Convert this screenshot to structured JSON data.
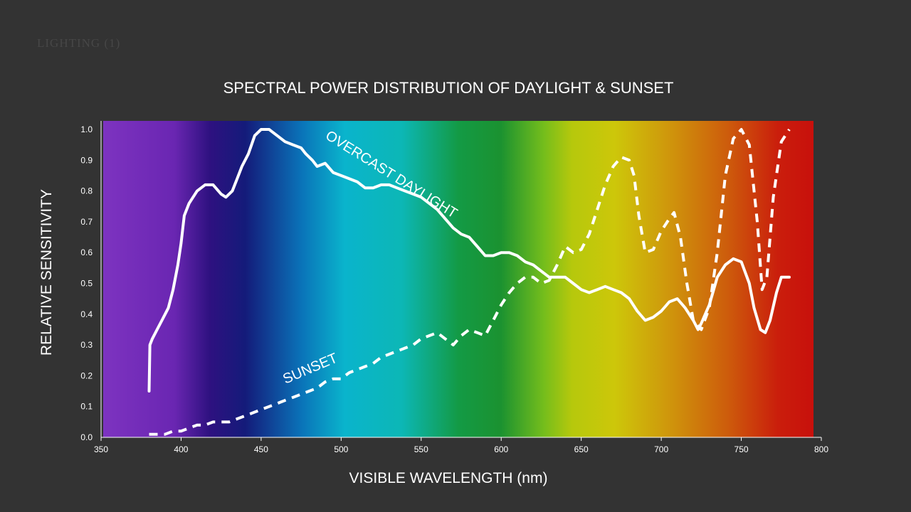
{
  "watermark": "LIGHTING (1)",
  "chart_data": {
    "type": "line",
    "title": "SPECTRAL POWER DISTRIBUTION OF DAYLIGHT & SUNSET",
    "xlabel": "VISIBLE WAVELENGTH (nm)",
    "ylabel": "RELATIVE SENSITIVITY",
    "xlim": [
      350,
      800
    ],
    "ylim": [
      0,
      1.0
    ],
    "x_ticks": [
      350,
      400,
      450,
      500,
      550,
      600,
      650,
      700,
      750,
      800
    ],
    "y_ticks": [
      "0.0",
      "0.1",
      "0.2",
      "0.3",
      "0.4",
      "0.5",
      "0.6",
      "0.7",
      "0.8",
      "0.9",
      "1.0"
    ],
    "background": "visible spectrum gradient",
    "grid": false,
    "legend": "none",
    "series": [
      {
        "name": "OVERCAST DAYLIGHT",
        "style": "solid",
        "color": "#ffffff",
        "x": [
          380,
          380.5,
          382,
          385,
          388,
          390,
          392,
          395,
          398,
          400,
          402,
          405,
          410,
          415,
          420,
          425,
          428,
          432,
          435,
          438,
          442,
          446,
          450,
          455,
          460,
          465,
          470,
          475,
          478,
          482,
          485,
          490,
          495,
          500,
          505,
          510,
          515,
          520,
          525,
          530,
          535,
          540,
          545,
          550,
          555,
          560,
          565,
          570,
          575,
          580,
          585,
          590,
          595,
          600,
          605,
          610,
          615,
          620,
          625,
          630,
          635,
          640,
          645,
          650,
          655,
          660,
          665,
          670,
          675,
          680,
          685,
          690,
          695,
          700,
          705,
          710,
          715,
          720,
          723,
          725,
          730,
          735,
          740,
          745,
          750,
          755,
          758,
          762,
          765,
          768,
          772,
          775,
          780
        ],
        "values": [
          0.15,
          0.3,
          0.32,
          0.35,
          0.38,
          0.4,
          0.42,
          0.48,
          0.56,
          0.63,
          0.72,
          0.76,
          0.8,
          0.82,
          0.82,
          0.79,
          0.78,
          0.8,
          0.84,
          0.88,
          0.92,
          0.98,
          1.0,
          1.0,
          0.98,
          0.96,
          0.95,
          0.94,
          0.92,
          0.9,
          0.88,
          0.89,
          0.86,
          0.85,
          0.84,
          0.83,
          0.81,
          0.81,
          0.82,
          0.82,
          0.81,
          0.8,
          0.79,
          0.78,
          0.76,
          0.74,
          0.71,
          0.68,
          0.66,
          0.65,
          0.62,
          0.59,
          0.59,
          0.6,
          0.6,
          0.59,
          0.57,
          0.56,
          0.54,
          0.52,
          0.52,
          0.52,
          0.5,
          0.48,
          0.47,
          0.48,
          0.49,
          0.48,
          0.47,
          0.45,
          0.41,
          0.38,
          0.39,
          0.41,
          0.44,
          0.45,
          0.42,
          0.38,
          0.35,
          0.37,
          0.43,
          0.52,
          0.56,
          0.58,
          0.57,
          0.5,
          0.42,
          0.35,
          0.34,
          0.38,
          0.47,
          0.52,
          0.52
        ]
      },
      {
        "name": "SUNSET",
        "style": "dashed",
        "color": "#ffffff",
        "x": [
          380,
          385,
          390,
          395,
          400,
          405,
          410,
          415,
          420,
          425,
          430,
          435,
          440,
          445,
          450,
          455,
          460,
          465,
          470,
          475,
          480,
          485,
          490,
          495,
          500,
          505,
          510,
          515,
          520,
          525,
          530,
          535,
          540,
          545,
          550,
          555,
          560,
          565,
          570,
          575,
          580,
          585,
          590,
          595,
          600,
          605,
          610,
          615,
          620,
          625,
          630,
          635,
          640,
          645,
          650,
          655,
          660,
          665,
          670,
          675,
          680,
          683,
          686,
          690,
          695,
          700,
          705,
          708,
          712,
          716,
          720,
          725,
          730,
          735,
          740,
          745,
          750,
          755,
          760,
          763,
          766,
          770,
          775,
          780
        ],
        "values": [
          0.01,
          0.01,
          0.01,
          0.02,
          0.02,
          0.03,
          0.04,
          0.04,
          0.05,
          0.05,
          0.05,
          0.06,
          0.07,
          0.08,
          0.09,
          0.1,
          0.11,
          0.12,
          0.13,
          0.14,
          0.15,
          0.16,
          0.18,
          0.19,
          0.19,
          0.21,
          0.22,
          0.23,
          0.24,
          0.26,
          0.27,
          0.28,
          0.29,
          0.3,
          0.32,
          0.33,
          0.34,
          0.32,
          0.3,
          0.33,
          0.35,
          0.34,
          0.33,
          0.38,
          0.43,
          0.47,
          0.5,
          0.52,
          0.52,
          0.5,
          0.51,
          0.56,
          0.62,
          0.6,
          0.61,
          0.66,
          0.74,
          0.82,
          0.88,
          0.91,
          0.9,
          0.85,
          0.72,
          0.6,
          0.61,
          0.67,
          0.71,
          0.73,
          0.65,
          0.5,
          0.38,
          0.35,
          0.42,
          0.6,
          0.85,
          0.97,
          1.0,
          0.95,
          0.7,
          0.48,
          0.52,
          0.78,
          0.96,
          1.0
        ]
      }
    ]
  }
}
